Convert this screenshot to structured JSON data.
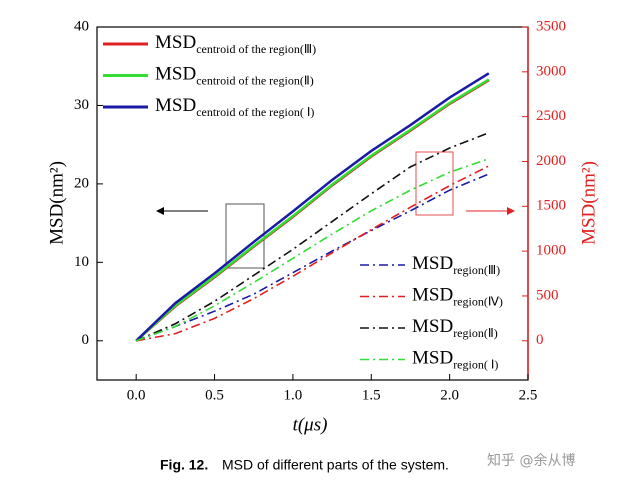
{
  "chart_data": {
    "type": "line",
    "x": [
      0,
      0.25,
      0.5,
      0.75,
      1.0,
      1.25,
      1.5,
      1.75,
      2.0,
      2.25
    ],
    "xlim": [
      -0.25,
      2.5
    ],
    "xticks": [
      {
        "value": 0,
        "label": "0.0"
      },
      {
        "value": 0.5,
        "label": "0.5"
      },
      {
        "value": 1,
        "label": "1.0"
      },
      {
        "value": 1.5,
        "label": "1.5"
      },
      {
        "value": 2,
        "label": "2.0"
      },
      {
        "value": 2.5,
        "label": "2.5"
      }
    ],
    "ylim": [
      -5,
      40
    ],
    "yticks": [
      0,
      10,
      20,
      30,
      40
    ],
    "y2lim": [
      -437.5,
      3500
    ],
    "y2ticks": [
      0,
      500,
      1000,
      1500,
      2000,
      2500,
      3000,
      3500
    ],
    "xlabel": "t(μs)",
    "ylabel": "MSD(nm²)",
    "y2label": "MSD(nm²)",
    "y2color": "#e02020",
    "series": [
      {
        "name": "MSDcentroid of the region(Ⅲ)",
        "color": "#e02020",
        "linestyle": "solid",
        "values": [
          0,
          4.4,
          8.1,
          12,
          15.8,
          19.8,
          23.5,
          26.8,
          30.2,
          33.2
        ]
      },
      {
        "name": "MSDcentroid of the region(Ⅱ)",
        "color": "#33dd33",
        "linestyle": "solid",
        "values": [
          0,
          4.5,
          8.2,
          12.1,
          15.9,
          19.9,
          23.6,
          26.9,
          30.3,
          33.3
        ]
      },
      {
        "name": "MSDcentroid of the region( Ⅰ)",
        "color": "#1a1aa6",
        "linestyle": "solid",
        "values": [
          0,
          4.8,
          8.6,
          12.6,
          16.5,
          20.5,
          24.2,
          27.5,
          31,
          34.1
        ]
      },
      {
        "name": "MSDregion(Ⅲ)",
        "color": "#1a1aa6",
        "linestyle": "dashdot",
        "axis": "y2",
        "values": [
          0,
          160,
          330,
          520,
          760,
          1000,
          1230,
          1450,
          1680,
          1860
        ]
      },
      {
        "name": "MSDregion(Ⅳ)",
        "color": "#e02020",
        "linestyle": "dashdot",
        "axis": "y2",
        "values": [
          0,
          80,
          250,
          470,
          720,
          980,
          1240,
          1490,
          1730,
          1950
        ]
      },
      {
        "name": "MSDregion(Ⅱ)",
        "color": "#111111",
        "linestyle": "dashdot",
        "axis": "y2",
        "values": [
          0,
          190,
          440,
          730,
          1020,
          1330,
          1640,
          1940,
          2150,
          2320
        ]
      },
      {
        "name": "MSDregion( Ⅰ)",
        "color": "#33dd33",
        "linestyle": "dashdot",
        "axis": "y2",
        "values": [
          0,
          160,
          390,
          650,
          920,
          1190,
          1450,
          1680,
          1880,
          2030
        ]
      }
    ]
  },
  "caption": {
    "label": "Fig. 12.",
    "text": "MSD of different parts of the system."
  },
  "watermark": "知乎 @余从博"
}
